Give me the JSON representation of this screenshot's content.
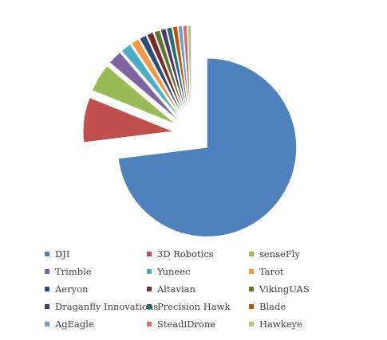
{
  "chart_data": {
    "type": "pie",
    "title": "",
    "exploded": true,
    "legend_position": "bottom",
    "slices": [
      {
        "name": "DJI",
        "value": 72.0,
        "color": "#4F81BD"
      },
      {
        "name": "3D Robotics",
        "value": 8.0,
        "color": "#C0504D"
      },
      {
        "name": "senseFly",
        "value": 5.0,
        "color": "#9BBB59"
      },
      {
        "name": "Trimble",
        "value": 2.5,
        "color": "#8064A2"
      },
      {
        "name": "Yuneec",
        "value": 1.8,
        "color": "#4BACC6"
      },
      {
        "name": "Tarot",
        "value": 1.4,
        "color": "#F79646"
      },
      {
        "name": "Aeryon",
        "value": 1.2,
        "color": "#2C4D75"
      },
      {
        "name": "Altavian",
        "value": 1.1,
        "color": "#772C2A"
      },
      {
        "name": "VikingUAS",
        "value": 1.0,
        "color": "#5F7530"
      },
      {
        "name": "Draganfly Innovations",
        "value": 0.9,
        "color": "#4D3B62"
      },
      {
        "name": "Precision Hawk",
        "value": 0.9,
        "color": "#276A7C"
      },
      {
        "name": "Blade",
        "value": 0.8,
        "color": "#B65708"
      },
      {
        "name": "AgEagle",
        "value": 0.7,
        "color": "#729ACA"
      },
      {
        "name": "SteadiDrone",
        "value": 0.7,
        "color": "#CD7371"
      },
      {
        "name": "Hawkeye",
        "value": 0.6,
        "color": "#AFC97A"
      }
    ]
  }
}
